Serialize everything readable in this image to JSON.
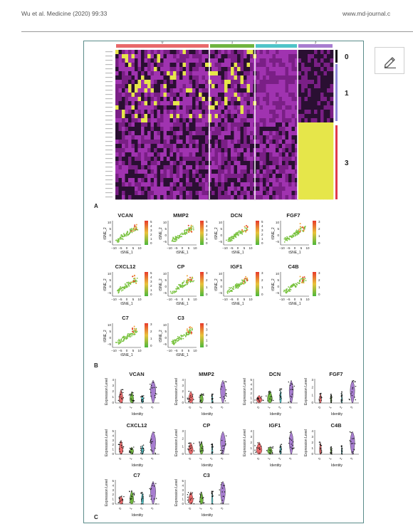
{
  "header": {
    "citation": "Wu et al. Medicine (2020) 99:33",
    "site": "www.md-journal.c"
  },
  "figure": {
    "panel_a": {
      "label": "A",
      "cluster_labels": [
        "0",
        "1",
        "2",
        "3"
      ],
      "cluster_colors": [
        "#e8696a",
        "#6fb43f",
        "#4fc4c8",
        "#a77dd0"
      ],
      "group_labels": [
        "0",
        "1",
        "3"
      ],
      "group_colors": [
        "#111111",
        "#8a82d6",
        "#e03a4b"
      ]
    },
    "panel_b": {
      "label": "B",
      "xlabel": "tSNE_1",
      "ylabel": "tSNE_2",
      "xticks": [
        "−10",
        "−5",
        "0",
        "5",
        "10"
      ],
      "yticks": [
        "10",
        "5",
        "0",
        "−5"
      ],
      "genes": [
        {
          "name": "VCAN",
          "scale": [
            "5",
            "4",
            "3",
            "2",
            "1",
            "0"
          ]
        },
        {
          "name": "MMP2",
          "scale": [
            "5",
            "4",
            "3",
            "2",
            "1",
            "0"
          ]
        },
        {
          "name": "DCN",
          "scale": [
            "5",
            "4",
            "3",
            "2",
            "1",
            "0"
          ]
        },
        {
          "name": "FGF7",
          "scale": [
            "3",
            "2",
            "1",
            "0"
          ]
        },
        {
          "name": "CXCL12",
          "scale": [
            "5",
            "4",
            "3",
            "2",
            "1",
            "0"
          ]
        },
        {
          "name": "CP",
          "scale": [
            "3",
            "2",
            "1",
            "0"
          ]
        },
        {
          "name": "IGF1",
          "scale": [
            "3",
            "2",
            "1",
            "0"
          ]
        },
        {
          "name": "C4B",
          "scale": [
            "3",
            "2",
            "1",
            "0"
          ]
        },
        {
          "name": "C7",
          "scale": [
            "3",
            "2",
            "1",
            "0"
          ]
        },
        {
          "name": "C3",
          "scale": [
            "4",
            "3",
            "2",
            "1",
            "0"
          ]
        }
      ]
    },
    "panel_c": {
      "label": "C",
      "xlabel": "Identity",
      "ylabel": "Expression Level",
      "categories": [
        "0",
        "1",
        "2",
        "3"
      ],
      "colors": [
        "#e8696a",
        "#6fb43f",
        "#4fc4c8",
        "#a77dd0"
      ],
      "genes": [
        {
          "name": "VCAN",
          "yticks": [
            "4",
            "3",
            "2",
            "1",
            "0"
          ]
        },
        {
          "name": "MMP2",
          "yticks": [
            "4",
            "3",
            "2",
            "1",
            "0"
          ]
        },
        {
          "name": "DCN",
          "yticks": [
            "5",
            "4",
            "3",
            "2",
            "1",
            "0"
          ]
        },
        {
          "name": "FGF7",
          "yticks": [
            "3",
            "2",
            "1",
            "0"
          ]
        },
        {
          "name": "CXCL12",
          "yticks": [
            "5",
            "4",
            "3",
            "2",
            "1",
            "0"
          ]
        },
        {
          "name": "CP",
          "yticks": [
            "3",
            "2",
            "1",
            "0"
          ]
        },
        {
          "name": "IGF1",
          "yticks": [
            "4",
            "3",
            "2",
            "1",
            "0"
          ]
        },
        {
          "name": "C4B",
          "yticks": [
            "4",
            "3",
            "2",
            "1",
            "0"
          ]
        },
        {
          "name": "C7",
          "yticks": [
            "5",
            "4",
            "3",
            "2",
            "1",
            "0"
          ]
        },
        {
          "name": "C3",
          "yticks": [
            "5",
            "4",
            "3",
            "2",
            "1",
            "0"
          ]
        }
      ]
    }
  },
  "edit_button": {
    "icon": "pencil-icon"
  }
}
